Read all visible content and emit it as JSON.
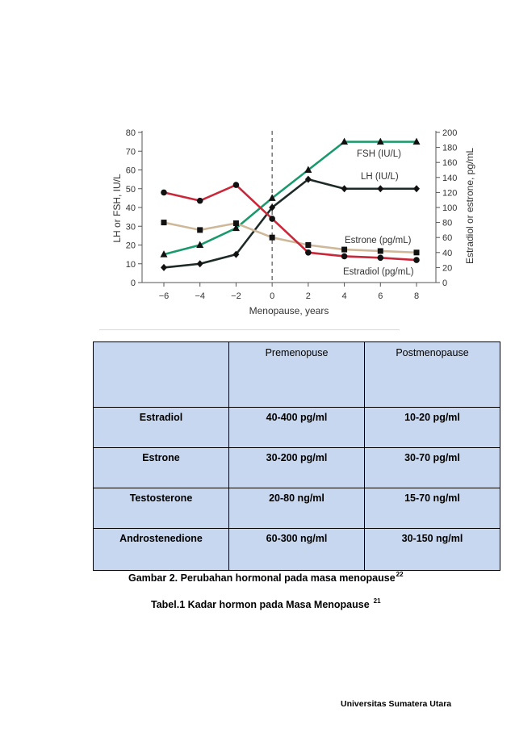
{
  "chart_data": {
    "type": "line",
    "xlabel": "Menopause, years",
    "ylabel_left": "LH or FSH, IU/L",
    "ylabel_right": "Estradiol or estrone, pg/mL",
    "x": [
      -6,
      -4,
      -2,
      0,
      2,
      4,
      6,
      8
    ],
    "x_ticks": [
      "−6",
      "−4",
      "−2",
      "0",
      "2",
      "4",
      "6",
      "8"
    ],
    "ylim_left": [
      0,
      80
    ],
    "y_ticks_left": [
      "0",
      "10",
      "20",
      "30",
      "40",
      "50",
      "60",
      "70",
      "80"
    ],
    "ylim_right": [
      0,
      200
    ],
    "y_ticks_right": [
      "0",
      "20",
      "40",
      "60",
      "80",
      "100",
      "120",
      "140",
      "160",
      "180",
      "200"
    ],
    "reference_line_x": 0,
    "grid": false,
    "series": [
      {
        "name": "FSH (IU/L)",
        "axis": "left",
        "marker": "triangle",
        "color": "#1a9a6c",
        "values": [
          15,
          20,
          29,
          45,
          60,
          75,
          75,
          75
        ]
      },
      {
        "name": "LH (IU/L)",
        "axis": "left",
        "marker": "diamond",
        "color": "#1e2a28",
        "values": [
          8,
          10,
          15,
          40,
          55,
          50,
          50,
          50
        ]
      },
      {
        "name": "Estrone (pg/mL)",
        "axis": "right",
        "marker": "square",
        "color": "#cfb89a",
        "values": [
          80,
          70,
          79,
          60,
          50,
          44,
          42,
          40
        ]
      },
      {
        "name": "Estradiol (pg/mL)",
        "axis": "right",
        "marker": "circle",
        "color": "#c8283a",
        "values": [
          120,
          109,
          130,
          85,
          40,
          35,
          33,
          30
        ]
      }
    ]
  },
  "table": {
    "headers": [
      "",
      "Premenopuse",
      "Postmenopause"
    ],
    "rows": [
      [
        "Estradiol",
        "40-400 pg/ml",
        "10-20 pg/ml"
      ],
      [
        "Estrone",
        "30-200 pg/ml",
        "30-70 pg/ml"
      ],
      [
        "Testosterone",
        "20-80 ng/ml",
        "15-70 ng/ml"
      ],
      [
        "Androstenedione",
        "60-300 ng/ml",
        "30-150 ng/ml"
      ]
    ]
  },
  "figure_caption": {
    "text": "Gambar 2. Perubahan hormonal pada masa menopause",
    "ref": "22"
  },
  "table_caption": {
    "text": "Tabel.1 Kadar hormon pada Masa Menopause",
    "ref": "21"
  },
  "footer": "Universitas Sumatera Utara"
}
